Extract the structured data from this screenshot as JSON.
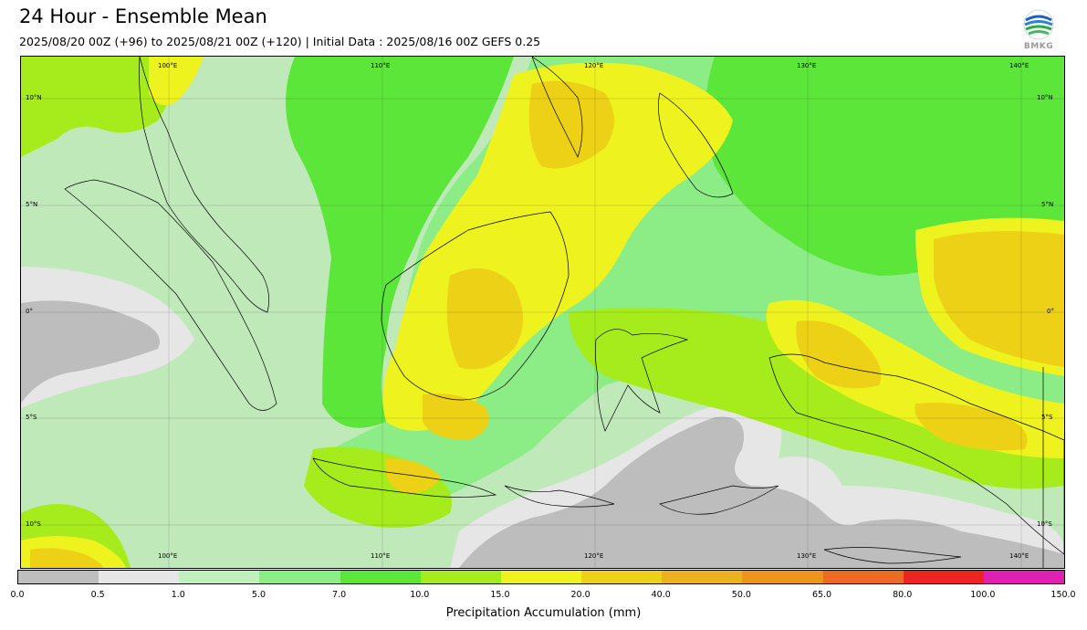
{
  "title": "24 Hour - Ensemble Mean",
  "subtitle": "2025/08/20 00Z (+96) to 2025/08/21 00Z (+120) | Initial Data : 2025/08/16 00Z GEFS 0.25",
  "logo_text": "BMKG",
  "map": {
    "lon_labels": [
      "100°E",
      "110°E",
      "120°E",
      "130°E",
      "140°E"
    ],
    "lat_labels": [
      "10°N",
      "5°N",
      "0°",
      "5°S",
      "10°S"
    ]
  },
  "colorbar": {
    "label": "Precipitation Accumulation (mm)",
    "ticks": [
      "0.0",
      "0.5",
      "1.0",
      "5.0",
      "7.0",
      "10.0",
      "15.0",
      "20.0",
      "40.0",
      "50.0",
      "65.0",
      "80.0",
      "100.0",
      "150.0"
    ],
    "colors": [
      "#bdbdbd",
      "#e6e6e6",
      "#c0f0bc",
      "#8cec85",
      "#5ce63a",
      "#a6ec1c",
      "#eef21f",
      "#ecd116",
      "#ecb11f",
      "#ec941c",
      "#ec6a22",
      "#ec2424",
      "#e01fb3"
    ]
  }
}
